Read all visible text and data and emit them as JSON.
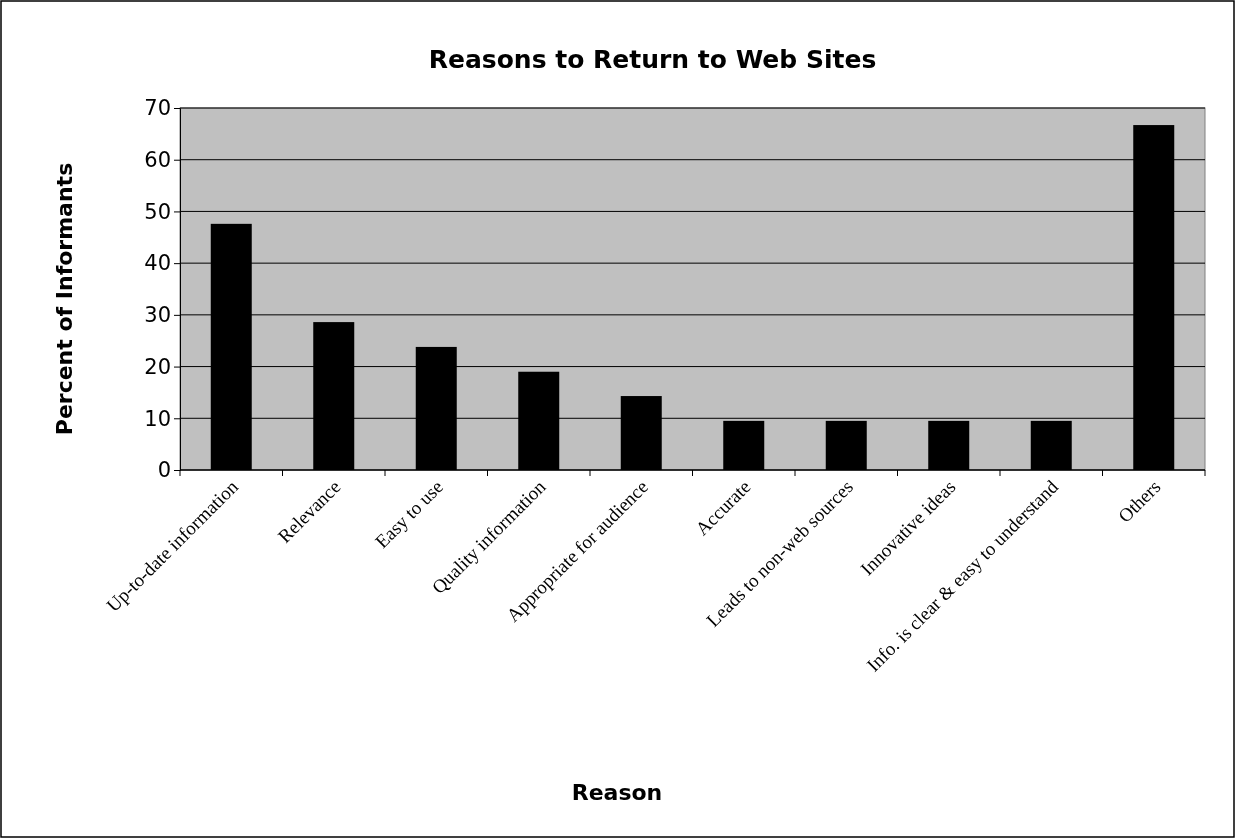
{
  "chart_data": {
    "type": "bar",
    "title": "Reasons to Return to Web Sites",
    "xlabel": "Reason",
    "ylabel": "Percent of Informants",
    "categories": [
      "Up-to-date information",
      "Relevance",
      "Easy to use",
      "Quality information",
      "Appropriate for audience",
      "Accurate",
      "Leads to non-web sources",
      "Innovative ideas",
      "Info. is clear & easy to understand",
      "Others"
    ],
    "values": [
      47.6,
      28.6,
      23.8,
      19.0,
      14.3,
      9.5,
      9.5,
      9.5,
      9.5,
      66.7
    ],
    "color": "#000000",
    "ylim": [
      0,
      70
    ],
    "yticks": [
      0,
      10,
      20,
      30,
      40,
      50,
      60,
      70
    ],
    "grid": "y"
  }
}
